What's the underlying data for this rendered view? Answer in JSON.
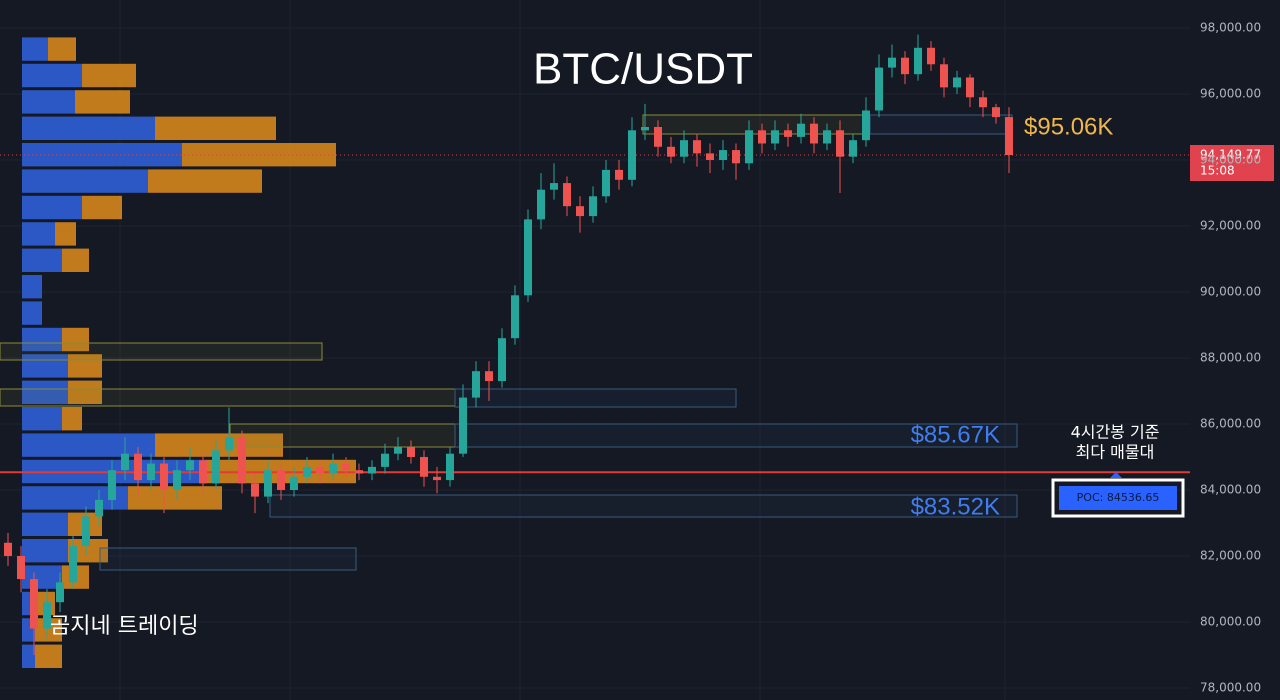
{
  "chart_data": {
    "type": "candlestick",
    "title": "BTC/USDT",
    "ohlc": [
      [
        82400,
        82700,
        81700,
        82000
      ],
      [
        82000,
        82300,
        80900,
        81300
      ],
      [
        81300,
        81500,
        79000,
        79800
      ],
      [
        79800,
        81000,
        79500,
        80600
      ],
      [
        80600,
        81500,
        80300,
        81200
      ],
      [
        81200,
        82600,
        81000,
        82300
      ],
      [
        82300,
        83500,
        82000,
        83200
      ],
      [
        83200,
        84000,
        82900,
        83700
      ],
      [
        83700,
        84900,
        83400,
        84600
      ],
      [
        84600,
        85600,
        84300,
        85100
      ],
      [
        85100,
        85300,
        83800,
        84300
      ],
      [
        84300,
        85100,
        84000,
        84800
      ],
      [
        84800,
        85000,
        83300,
        84000
      ],
      [
        84000,
        84900,
        83700,
        84600
      ],
      [
        84600,
        85300,
        84300,
        84900
      ],
      [
        84900,
        85100,
        83900,
        84200
      ],
      [
        84200,
        85500,
        84000,
        85200
      ],
      [
        85200,
        86500,
        84900,
        85600
      ],
      [
        85600,
        85800,
        83900,
        84200
      ],
      [
        84200,
        84500,
        83300,
        83800
      ],
      [
        83800,
        84900,
        83600,
        84600
      ],
      [
        84600,
        84800,
        83700,
        84000
      ],
      [
        84000,
        84700,
        83800,
        84400
      ],
      [
        84400,
        85000,
        84200,
        84700
      ],
      [
        84700,
        84900,
        84200,
        84500
      ],
      [
        84500,
        85100,
        84300,
        84800
      ],
      [
        84800,
        85000,
        84400,
        84600
      ],
      [
        84600,
        84800,
        84300,
        84500
      ],
      [
        84500,
        84900,
        84300,
        84700
      ],
      [
        84700,
        85400,
        84500,
        85100
      ],
      [
        85100,
        85600,
        84900,
        85300
      ],
      [
        85300,
        85500,
        84800,
        85000
      ],
      [
        85000,
        85200,
        84100,
        84400
      ],
      [
        84400,
        84700,
        83900,
        84300
      ],
      [
        84300,
        85300,
        84100,
        85100
      ],
      [
        85100,
        87200,
        85000,
        86800
      ],
      [
        86800,
        87900,
        86500,
        87600
      ],
      [
        87600,
        87900,
        86700,
        87300
      ],
      [
        87300,
        88900,
        87100,
        88600
      ],
      [
        88600,
        90200,
        88400,
        89900
      ],
      [
        89900,
        92500,
        89700,
        92200
      ],
      [
        92200,
        93600,
        91900,
        93100
      ],
      [
        93100,
        93900,
        92800,
        93300
      ],
      [
        93300,
        93500,
        92300,
        92600
      ],
      [
        92600,
        92900,
        91800,
        92300
      ],
      [
        92300,
        93200,
        92100,
        92900
      ],
      [
        92900,
        94000,
        92700,
        93700
      ],
      [
        93700,
        94000,
        93100,
        93400
      ],
      [
        93400,
        95300,
        93200,
        94900
      ],
      [
        94900,
        95700,
        94600,
        95000
      ],
      [
        95000,
        95200,
        94100,
        94400
      ],
      [
        94400,
        94700,
        93900,
        94100
      ],
      [
        94100,
        94900,
        93900,
        94600
      ],
      [
        94600,
        94800,
        93800,
        94200
      ],
      [
        94200,
        94500,
        93600,
        94000
      ],
      [
        94000,
        94600,
        93700,
        94300
      ],
      [
        94300,
        94500,
        93400,
        93900
      ],
      [
        93900,
        95200,
        93700,
        94900
      ],
      [
        94900,
        95100,
        94200,
        94500
      ],
      [
        94500,
        95200,
        94300,
        94900
      ],
      [
        94900,
        95100,
        94400,
        94700
      ],
      [
        94700,
        95400,
        94500,
        95100
      ],
      [
        95100,
        95300,
        94200,
        94500
      ],
      [
        94500,
        95100,
        94300,
        94900
      ],
      [
        94900,
        95200,
        93000,
        94100
      ],
      [
        94100,
        94800,
        93900,
        94600
      ],
      [
        94600,
        95900,
        94400,
        95500
      ],
      [
        95500,
        97200,
        95300,
        96800
      ],
      [
        96800,
        97500,
        96500,
        97100
      ],
      [
        97100,
        97300,
        96300,
        96600
      ],
      [
        96600,
        97800,
        96400,
        97400
      ],
      [
        97400,
        97600,
        96700,
        96900
      ],
      [
        96900,
        97100,
        95900,
        96200
      ],
      [
        96200,
        96700,
        96000,
        96500
      ],
      [
        96500,
        96600,
        95600,
        95900
      ],
      [
        95900,
        96100,
        95300,
        95600
      ],
      [
        95600,
        95700,
        95100,
        95300
      ],
      [
        95300,
        95600,
        93600,
        94149.77
      ]
    ],
    "ylim": [
      77636,
      98848
    ],
    "yticks": [
      {
        "value": 98000,
        "label": "98,000.00"
      },
      {
        "value": 96000,
        "label": "96,000.00"
      },
      {
        "value": 94000,
        "label": "94,000.00"
      },
      {
        "value": 92000,
        "label": "92,000.00"
      },
      {
        "value": 90000,
        "label": "90,000.00"
      },
      {
        "value": 88000,
        "label": "88,000.00"
      },
      {
        "value": 86000,
        "label": "86,000.00"
      },
      {
        "value": 84000,
        "label": "84,000.00"
      },
      {
        "value": 82000,
        "label": "82,000.00"
      },
      {
        "value": 80000,
        "label": "80,000.00"
      },
      {
        "value": 78000,
        "label": "78,000.00"
      }
    ],
    "grid": true,
    "up_color": "#26a69a",
    "down_color": "#ef5350",
    "last_price": {
      "value": 94149.77,
      "label": "94,149.77"
    },
    "countdown": "15:08",
    "poc": {
      "value": 84536.65,
      "label": "POC: 84536.65"
    },
    "poc_note": [
      "4시간봉 기준",
      "최다 매물대"
    ],
    "level_labels": [
      "$95.06K",
      "$85.67K",
      "$83.52K"
    ],
    "watermark": "곰지네 트레이딩",
    "volume_profile": {
      "bins": [
        78560,
        79360,
        80160,
        80960,
        81760,
        82560,
        83360,
        84160,
        84960,
        85760,
        86560,
        87360,
        88160,
        88960,
        89760,
        90560,
        91360,
        92160,
        92960,
        93760,
        94560,
        95360,
        96160,
        96960,
        97760
      ],
      "buy": [
        13,
        13,
        13,
        40,
        46,
        46,
        106,
        183,
        133,
        40,
        46,
        46,
        40,
        20,
        20,
        40,
        33,
        60,
        126,
        160,
        133,
        53,
        60,
        26
      ],
      "sell": [
        27,
        27,
        20,
        27,
        40,
        34,
        94,
        151,
        128,
        20,
        34,
        34,
        27,
        0,
        0,
        27,
        21,
        40,
        114,
        154,
        121,
        55,
        54,
        28
      ],
      "buy_color": "#2d5fd6",
      "sell_color": "#d4861c"
    }
  }
}
